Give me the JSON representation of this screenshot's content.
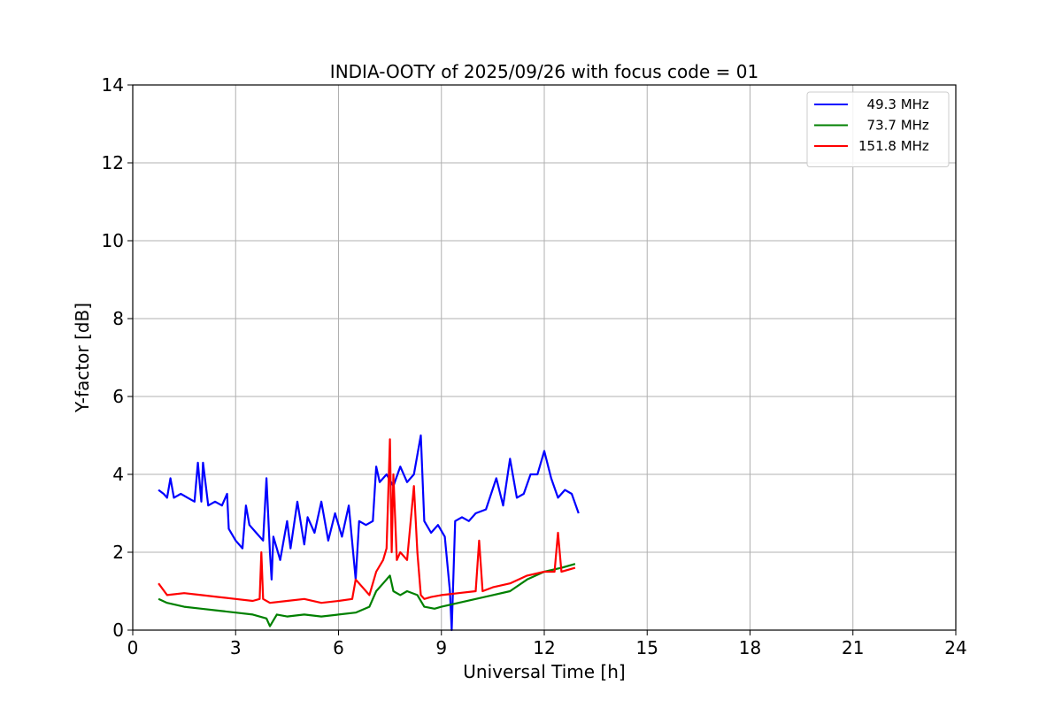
{
  "chart_data": {
    "type": "line",
    "title": "INDIA-OOTY of 2025/09/26 with focus code = 01",
    "xlabel": "Universal Time [h]",
    "ylabel": "Y-factor [dB]",
    "xlim": [
      0,
      24
    ],
    "ylim": [
      0,
      14
    ],
    "xticks": [
      0,
      3,
      6,
      9,
      12,
      15,
      18,
      21,
      24
    ],
    "yticks": [
      0,
      2,
      4,
      6,
      8,
      10,
      12,
      14
    ],
    "grid": true,
    "legend_position": "top-right",
    "series": [
      {
        "name": "  49.3 MHz",
        "color": "#0000ff",
        "x": [
          0.75,
          0.9,
          1.0,
          1.1,
          1.2,
          1.4,
          1.6,
          1.8,
          1.9,
          2.0,
          2.05,
          2.2,
          2.4,
          2.6,
          2.75,
          2.8,
          3.0,
          3.2,
          3.3,
          3.4,
          3.6,
          3.8,
          3.9,
          4.0,
          4.05,
          4.1,
          4.3,
          4.5,
          4.6,
          4.8,
          5.0,
          5.1,
          5.3,
          5.5,
          5.7,
          5.9,
          6.1,
          6.3,
          6.5,
          6.6,
          6.8,
          7.0,
          7.1,
          7.2,
          7.4,
          7.6,
          7.8,
          8.0,
          8.2,
          8.4,
          8.5,
          8.7,
          8.9,
          9.1,
          9.25,
          9.3,
          9.4,
          9.6,
          9.8,
          10.0,
          10.3,
          10.6,
          10.8,
          11.0,
          11.2,
          11.4,
          11.6,
          11.8,
          12.0,
          12.2,
          12.4,
          12.6,
          12.8,
          13.0
        ],
        "y": [
          3.6,
          3.5,
          3.4,
          3.9,
          3.4,
          3.5,
          3.4,
          3.3,
          4.3,
          3.3,
          4.3,
          3.2,
          3.3,
          3.2,
          3.5,
          2.6,
          2.3,
          2.1,
          3.2,
          2.7,
          2.5,
          2.3,
          3.9,
          2.0,
          1.3,
          2.4,
          1.8,
          2.8,
          2.1,
          3.3,
          2.2,
          2.9,
          2.5,
          3.3,
          2.3,
          3.0,
          2.4,
          3.2,
          1.3,
          2.8,
          2.7,
          2.8,
          4.2,
          3.8,
          4.0,
          3.7,
          4.2,
          3.8,
          4.0,
          5.0,
          2.8,
          2.5,
          2.7,
          2.4,
          1.0,
          0.0,
          2.8,
          2.9,
          2.8,
          3.0,
          3.1,
          3.9,
          3.2,
          4.4,
          3.4,
          3.5,
          4.0,
          4.0,
          4.6,
          3.9,
          3.4,
          3.6,
          3.5,
          3.0
        ]
      },
      {
        "name": "  73.7 MHz",
        "color": "#008000",
        "x": [
          0.75,
          1.0,
          1.5,
          2.0,
          2.5,
          3.0,
          3.5,
          3.9,
          4.0,
          4.2,
          4.5,
          5.0,
          5.5,
          6.0,
          6.5,
          6.9,
          7.1,
          7.3,
          7.5,
          7.6,
          7.8,
          8.0,
          8.3,
          8.5,
          8.8,
          9.0,
          9.5,
          10.0,
          10.5,
          11.0,
          11.5,
          12.0,
          12.5,
          12.9
        ],
        "y": [
          0.8,
          0.7,
          0.6,
          0.55,
          0.5,
          0.45,
          0.4,
          0.3,
          0.1,
          0.4,
          0.35,
          0.4,
          0.35,
          0.4,
          0.45,
          0.6,
          1.0,
          1.2,
          1.4,
          1.0,
          0.9,
          1.0,
          0.9,
          0.6,
          0.55,
          0.6,
          0.7,
          0.8,
          0.9,
          1.0,
          1.3,
          1.5,
          1.6,
          1.7
        ]
      },
      {
        "name": "151.8 MHz",
        "color": "#ff0000",
        "x": [
          0.75,
          1.0,
          1.5,
          2.0,
          2.5,
          3.0,
          3.5,
          3.7,
          3.75,
          3.8,
          4.0,
          4.5,
          5.0,
          5.5,
          6.0,
          6.4,
          6.5,
          6.9,
          7.1,
          7.3,
          7.4,
          7.5,
          7.55,
          7.6,
          7.7,
          7.8,
          8.0,
          8.2,
          8.3,
          8.4,
          8.5,
          8.7,
          9.0,
          9.5,
          10.0,
          10.1,
          10.2,
          10.5,
          11.0,
          11.5,
          12.0,
          12.3,
          12.4,
          12.5,
          12.9
        ],
        "y": [
          1.2,
          0.9,
          0.95,
          0.9,
          0.85,
          0.8,
          0.75,
          0.8,
          2.0,
          0.8,
          0.7,
          0.75,
          0.8,
          0.7,
          0.75,
          0.8,
          1.3,
          0.9,
          1.5,
          1.8,
          2.1,
          4.9,
          2.0,
          4.0,
          1.8,
          2.0,
          1.8,
          3.7,
          2.0,
          0.9,
          0.8,
          0.85,
          0.9,
          0.95,
          1.0,
          2.3,
          1.0,
          1.1,
          1.2,
          1.4,
          1.5,
          1.5,
          2.5,
          1.5,
          1.6
        ]
      }
    ]
  }
}
